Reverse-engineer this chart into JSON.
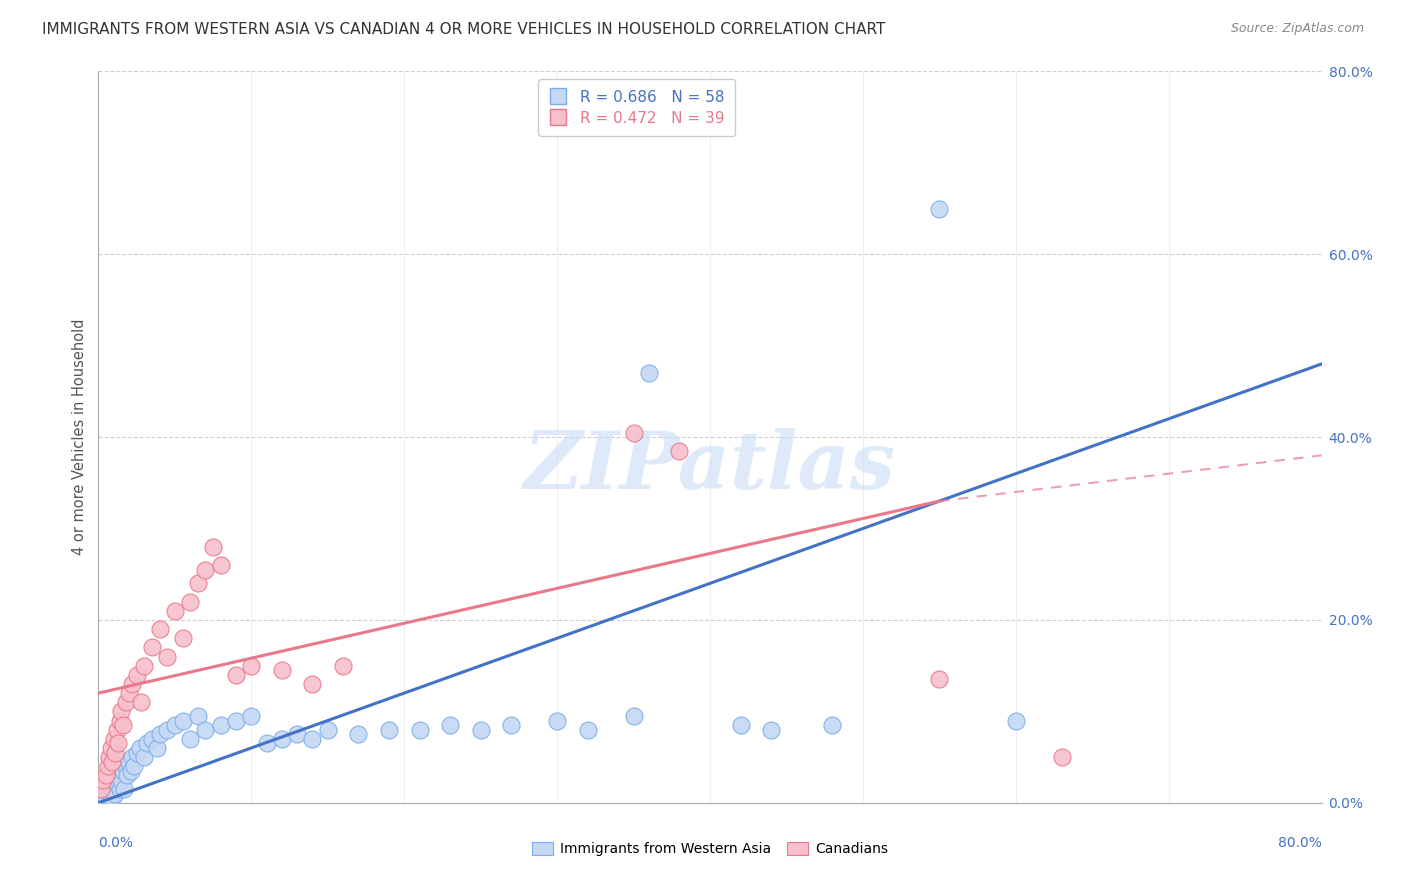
{
  "title": "IMMIGRANTS FROM WESTERN ASIA VS CANADIAN 4 OR MORE VEHICLES IN HOUSEHOLD CORRELATION CHART",
  "source": "Source: ZipAtlas.com",
  "ylabel": "4 or more Vehicles in Household",
  "ytick_values": [
    0,
    20,
    40,
    60,
    80
  ],
  "xlim": [
    0,
    80
  ],
  "ylim": [
    0,
    80
  ],
  "legend_entries": [
    {
      "R": "0.686",
      "N": "58",
      "label": "Immigrants from Western Asia"
    },
    {
      "R": "0.472",
      "N": "39",
      "label": "Canadians"
    }
  ],
  "blue_scatter": [
    [
      0.2,
      0.5
    ],
    [
      0.3,
      1.0
    ],
    [
      0.4,
      0.8
    ],
    [
      0.5,
      1.5
    ],
    [
      0.6,
      1.2
    ],
    [
      0.7,
      2.0
    ],
    [
      0.8,
      1.8
    ],
    [
      0.9,
      0.5
    ],
    [
      1.0,
      2.5
    ],
    [
      1.1,
      1.0
    ],
    [
      1.2,
      3.0
    ],
    [
      1.3,
      2.0
    ],
    [
      1.4,
      1.5
    ],
    [
      1.5,
      2.5
    ],
    [
      1.6,
      3.5
    ],
    [
      1.7,
      1.5
    ],
    [
      1.8,
      4.0
    ],
    [
      1.9,
      3.0
    ],
    [
      2.0,
      4.5
    ],
    [
      2.1,
      3.5
    ],
    [
      2.2,
      5.0
    ],
    [
      2.3,
      4.0
    ],
    [
      2.5,
      5.5
    ],
    [
      2.7,
      6.0
    ],
    [
      3.0,
      5.0
    ],
    [
      3.2,
      6.5
    ],
    [
      3.5,
      7.0
    ],
    [
      3.8,
      6.0
    ],
    [
      4.0,
      7.5
    ],
    [
      4.5,
      8.0
    ],
    [
      5.0,
      8.5
    ],
    [
      5.5,
      9.0
    ],
    [
      6.0,
      7.0
    ],
    [
      6.5,
      9.5
    ],
    [
      7.0,
      8.0
    ],
    [
      8.0,
      8.5
    ],
    [
      9.0,
      9.0
    ],
    [
      10.0,
      9.5
    ],
    [
      11.0,
      6.5
    ],
    [
      12.0,
      7.0
    ],
    [
      13.0,
      7.5
    ],
    [
      14.0,
      7.0
    ],
    [
      15.0,
      8.0
    ],
    [
      17.0,
      7.5
    ],
    [
      19.0,
      8.0
    ],
    [
      21.0,
      8.0
    ],
    [
      23.0,
      8.5
    ],
    [
      25.0,
      8.0
    ],
    [
      27.0,
      8.5
    ],
    [
      30.0,
      9.0
    ],
    [
      32.0,
      8.0
    ],
    [
      35.0,
      9.5
    ],
    [
      36.0,
      47.0
    ],
    [
      42.0,
      8.5
    ],
    [
      44.0,
      8.0
    ],
    [
      48.0,
      8.5
    ],
    [
      55.0,
      65.0
    ],
    [
      60.0,
      9.0
    ]
  ],
  "pink_scatter": [
    [
      0.2,
      1.5
    ],
    [
      0.3,
      2.5
    ],
    [
      0.5,
      3.0
    ],
    [
      0.6,
      4.0
    ],
    [
      0.7,
      5.0
    ],
    [
      0.8,
      6.0
    ],
    [
      0.9,
      4.5
    ],
    [
      1.0,
      7.0
    ],
    [
      1.1,
      5.5
    ],
    [
      1.2,
      8.0
    ],
    [
      1.3,
      6.5
    ],
    [
      1.4,
      9.0
    ],
    [
      1.5,
      10.0
    ],
    [
      1.6,
      8.5
    ],
    [
      1.8,
      11.0
    ],
    [
      2.0,
      12.0
    ],
    [
      2.2,
      13.0
    ],
    [
      2.5,
      14.0
    ],
    [
      2.8,
      11.0
    ],
    [
      3.0,
      15.0
    ],
    [
      3.5,
      17.0
    ],
    [
      4.0,
      19.0
    ],
    [
      4.5,
      16.0
    ],
    [
      5.0,
      21.0
    ],
    [
      5.5,
      18.0
    ],
    [
      6.0,
      22.0
    ],
    [
      6.5,
      24.0
    ],
    [
      7.0,
      25.5
    ],
    [
      7.5,
      28.0
    ],
    [
      8.0,
      26.0
    ],
    [
      9.0,
      14.0
    ],
    [
      10.0,
      15.0
    ],
    [
      12.0,
      14.5
    ],
    [
      14.0,
      13.0
    ],
    [
      16.0,
      15.0
    ],
    [
      35.0,
      40.5
    ],
    [
      38.0,
      38.5
    ],
    [
      55.0,
      13.5
    ],
    [
      63.0,
      5.0
    ]
  ],
  "blue_line": [
    [
      0,
      0
    ],
    [
      80,
      48
    ]
  ],
  "pink_line_solid": [
    [
      0,
      12
    ],
    [
      55,
      33
    ]
  ],
  "pink_line_dashed": [
    [
      55,
      33
    ],
    [
      80,
      38
    ]
  ],
  "blue_color": "#4472c4",
  "blue_scatter_fill": "#c5d8f5",
  "blue_scatter_edge": "#7baee8",
  "pink_color": "#e8788a",
  "pink_scatter_fill": "#f8c0cc",
  "pink_scatter_edge": "#e8788a",
  "watermark_text": "ZIPatlas",
  "watermark_color": "#c8ddf5",
  "background_color": "#ffffff",
  "grid_color": "#d0d0d0",
  "tick_color": "#4472c4",
  "title_color": "#333333",
  "source_color": "#888888",
  "ylabel_color": "#555555"
}
